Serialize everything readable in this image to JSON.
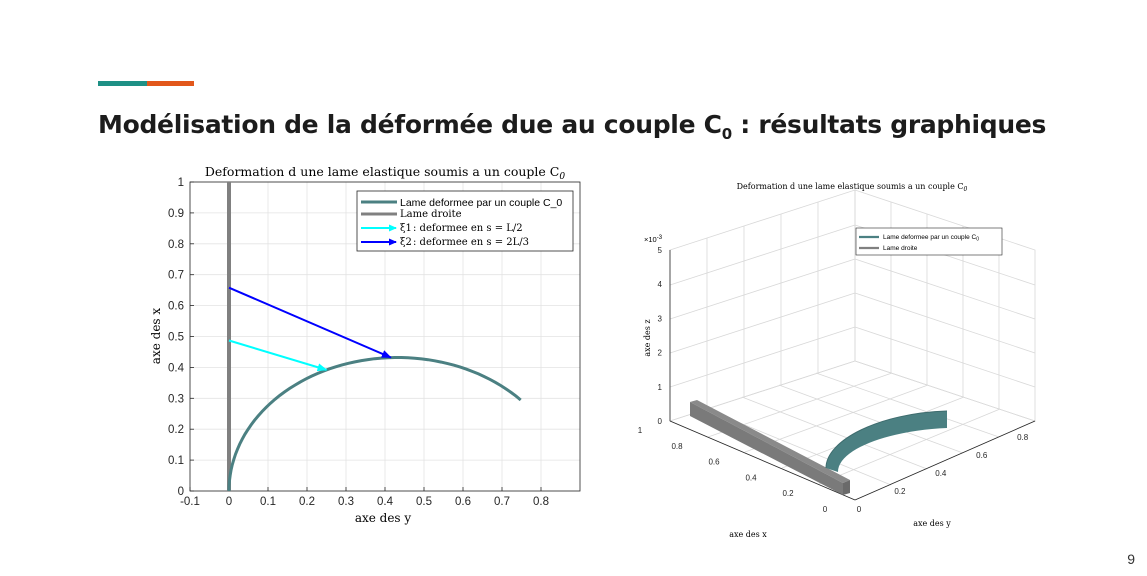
{
  "slide": {
    "title_main": "Modélisation de la déformée due au couple C",
    "title_sub": "0",
    "title_rest": " : résultats graphiques",
    "page_number": "9",
    "accent_colors": [
      "#1e9085",
      "#e2571b"
    ]
  },
  "chart_data": [
    {
      "type": "line",
      "title": "Deformation d une lame elastique soumis a un couple C",
      "title_subscript": "0",
      "xlabel": "axe des y",
      "ylabel": "axe des x",
      "xlim": [
        -0.1,
        0.9
      ],
      "ylim": [
        0,
        1
      ],
      "xticks": [
        -0.1,
        0,
        0.1,
        0.2,
        0.3,
        0.4,
        0.5,
        0.6,
        0.7,
        0.8
      ],
      "xtick_labels": [
        "-0.1",
        "0",
        "0.1",
        "0.2",
        "0.3",
        "0.4",
        "0.5",
        "0.6",
        "0.7",
        "0.8"
      ],
      "yticks": [
        0,
        0.1,
        0.2,
        0.3,
        0.4,
        0.5,
        0.6,
        0.7,
        0.8,
        0.9,
        1
      ],
      "ytick_labels": [
        "0",
        "0.1",
        "0.2",
        "0.3",
        "0.4",
        "0.5",
        "0.6",
        "0.7",
        "0.8",
        "0.9",
        "1"
      ],
      "grid": true,
      "legend_position": "top-right",
      "series": [
        {
          "name": "Lame deformee par un couple C_0",
          "color": "#4b8082",
          "arc": {
            "center": [
              0.432,
              0
            ],
            "radius": 0.432,
            "start_deg": 180,
            "end_deg": 43
          }
        },
        {
          "name": "Lame droite",
          "color": "#808080",
          "x": [
            0,
            0
          ],
          "y": [
            0,
            1
          ]
        },
        {
          "name": ": deformee en s = L/2",
          "symbol": "ξ1",
          "color": "#00ffff",
          "x": [
            0,
            0.25
          ],
          "y": [
            0.487,
            0.392
          ]
        },
        {
          "name": ": deformee en s = 2L/3",
          "symbol": "ξ2",
          "color": "#0000ff",
          "x": [
            0,
            0.415
          ],
          "y": [
            0.658,
            0.432
          ]
        }
      ]
    },
    {
      "type": "surface-3d",
      "title": "Deformation d une lame elastique soumis a un couple C",
      "title_subscript": "0",
      "xlabel": "axe des y",
      "ylabel": "axe des x",
      "zlabel": "axe des z",
      "z_multiplier": "×10",
      "z_exponent": "-3",
      "zticks": [
        "0",
        "1",
        "2",
        "3",
        "4",
        "5"
      ],
      "xticks": [
        "0",
        "0.2",
        "0.4",
        "0.6",
        "0.8"
      ],
      "yticks": [
        "0",
        "0.2",
        "0.4",
        "0.6",
        "0.8",
        "1"
      ],
      "grid": true,
      "legend_position": "top-right",
      "series": [
        {
          "name": "Lame deformee par un couple C",
          "name_subscript": "0",
          "color": "#4b8082"
        },
        {
          "name": "Lame droite",
          "color": "#808080"
        }
      ]
    }
  ]
}
